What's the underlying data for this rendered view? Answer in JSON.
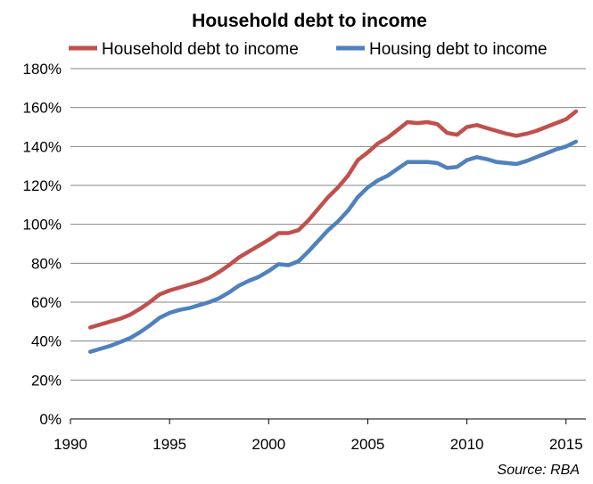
{
  "chart_data": {
    "type": "line",
    "title": "Household debt to income",
    "source": "Source: RBA",
    "xlabel": "",
    "ylabel": "",
    "xlim": [
      1990,
      2016
    ],
    "ylim": [
      0,
      180
    ],
    "grid": true,
    "legend_position": "top",
    "x_ticks": [
      {
        "value": 1990,
        "label": "1990"
      },
      {
        "value": 1995,
        "label": "1995"
      },
      {
        "value": 2000,
        "label": "2000"
      },
      {
        "value": 2005,
        "label": "2005"
      },
      {
        "value": 2010,
        "label": "2010"
      },
      {
        "value": 2015,
        "label": "2015"
      }
    ],
    "y_ticks": [
      {
        "value": 0,
        "label": "0%"
      },
      {
        "value": 20,
        "label": "20%"
      },
      {
        "value": 40,
        "label": "40%"
      },
      {
        "value": 60,
        "label": "60%"
      },
      {
        "value": 80,
        "label": "80%"
      },
      {
        "value": 100,
        "label": "100%"
      },
      {
        "value": 120,
        "label": "120%"
      },
      {
        "value": 140,
        "label": "140%"
      },
      {
        "value": 160,
        "label": "160%"
      },
      {
        "value": 180,
        "label": "180%"
      }
    ],
    "series": [
      {
        "name": "Household debt to income",
        "color": "#c0504d",
        "points": [
          [
            1991.0,
            47
          ],
          [
            1991.5,
            48.5
          ],
          [
            1992.0,
            50
          ],
          [
            1992.5,
            51.5
          ],
          [
            1993.0,
            53.5
          ],
          [
            1993.5,
            56.5
          ],
          [
            1994.0,
            60
          ],
          [
            1994.5,
            64
          ],
          [
            1995.0,
            66
          ],
          [
            1995.5,
            67.5
          ],
          [
            1996.0,
            69
          ],
          [
            1996.5,
            70.5
          ],
          [
            1997.0,
            72.5
          ],
          [
            1997.5,
            75.5
          ],
          [
            1998.0,
            79
          ],
          [
            1998.5,
            83
          ],
          [
            1999.0,
            86
          ],
          [
            1999.5,
            89
          ],
          [
            2000.0,
            92
          ],
          [
            2000.5,
            95.5
          ],
          [
            2001.0,
            95.5
          ],
          [
            2001.5,
            97
          ],
          [
            2002.0,
            102
          ],
          [
            2002.5,
            108
          ],
          [
            2003.0,
            114
          ],
          [
            2003.5,
            119
          ],
          [
            2004.0,
            125
          ],
          [
            2004.5,
            133
          ],
          [
            2005.0,
            137
          ],
          [
            2005.5,
            141.5
          ],
          [
            2006.0,
            144.5
          ],
          [
            2006.5,
            148.5
          ],
          [
            2007.0,
            152.5
          ],
          [
            2007.5,
            152
          ],
          [
            2008.0,
            152.5
          ],
          [
            2008.5,
            151.5
          ],
          [
            2009.0,
            147
          ],
          [
            2009.5,
            146
          ],
          [
            2010.0,
            150
          ],
          [
            2010.5,
            151
          ],
          [
            2011.0,
            149.5
          ],
          [
            2011.5,
            148
          ],
          [
            2012.0,
            146.5
          ],
          [
            2012.5,
            145.5
          ],
          [
            2013.0,
            146.5
          ],
          [
            2013.5,
            148
          ],
          [
            2014.0,
            150
          ],
          [
            2014.5,
            152
          ],
          [
            2015.0,
            154
          ],
          [
            2015.5,
            158
          ]
        ]
      },
      {
        "name": "Housing debt to income",
        "color": "#4f81bd",
        "points": [
          [
            1991.0,
            34.5
          ],
          [
            1991.5,
            36
          ],
          [
            1992.0,
            37.5
          ],
          [
            1992.5,
            39.5
          ],
          [
            1993.0,
            41.5
          ],
          [
            1993.5,
            44.5
          ],
          [
            1994.0,
            48
          ],
          [
            1994.5,
            52
          ],
          [
            1995.0,
            54.5
          ],
          [
            1995.5,
            56
          ],
          [
            1996.0,
            57
          ],
          [
            1996.5,
            58.5
          ],
          [
            1997.0,
            60
          ],
          [
            1997.5,
            62
          ],
          [
            1998.0,
            65
          ],
          [
            1998.5,
            68.5
          ],
          [
            1999.0,
            71
          ],
          [
            1999.5,
            73
          ],
          [
            2000.0,
            76
          ],
          [
            2000.5,
            79.5
          ],
          [
            2001.0,
            79
          ],
          [
            2001.5,
            81
          ],
          [
            2002.0,
            86
          ],
          [
            2002.5,
            91.5
          ],
          [
            2003.0,
            97
          ],
          [
            2003.5,
            101.5
          ],
          [
            2004.0,
            107
          ],
          [
            2004.5,
            114
          ],
          [
            2005.0,
            119
          ],
          [
            2005.5,
            122.5
          ],
          [
            2006.0,
            125
          ],
          [
            2006.5,
            128.5
          ],
          [
            2007.0,
            132
          ],
          [
            2007.5,
            132
          ],
          [
            2008.0,
            132
          ],
          [
            2008.5,
            131.5
          ],
          [
            2009.0,
            129
          ],
          [
            2009.5,
            129.5
          ],
          [
            2010.0,
            133
          ],
          [
            2010.5,
            134.5
          ],
          [
            2011.0,
            133.5
          ],
          [
            2011.5,
            132
          ],
          [
            2012.0,
            131.5
          ],
          [
            2012.5,
            131
          ],
          [
            2013.0,
            132.5
          ],
          [
            2013.5,
            134.5
          ],
          [
            2014.0,
            136.5
          ],
          [
            2014.5,
            138.5
          ],
          [
            2015.0,
            140
          ],
          [
            2015.5,
            142.5
          ]
        ]
      }
    ]
  }
}
